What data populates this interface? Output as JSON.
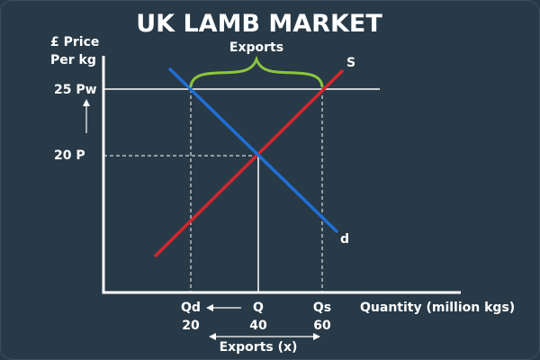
{
  "title": "UK LAMB MARKET",
  "y_axis": {
    "label_line1": "£ Price",
    "label_line2": "Per kg",
    "arrow_icon": "up-arrow-icon"
  },
  "x_axis": {
    "label": "Quantity (million kgs)"
  },
  "price_labels": {
    "world": "25 Pw",
    "domestic": "20  P"
  },
  "curve_labels": {
    "supply": "S",
    "demand": "d"
  },
  "exports_label_top": "Exports",
  "exports_label_bottom": "Exports (x)",
  "quantity_labels": {
    "qd": {
      "letter": "Qd",
      "value": "20"
    },
    "q": {
      "letter": "Q",
      "value": "40"
    },
    "qs": {
      "letter": "Qs",
      "value": "60"
    }
  },
  "colors": {
    "background": "#283a47",
    "supply": "#d4262e",
    "demand": "#1f6fd6",
    "brace": "#8cc63f",
    "lines": "#ffffff"
  }
}
